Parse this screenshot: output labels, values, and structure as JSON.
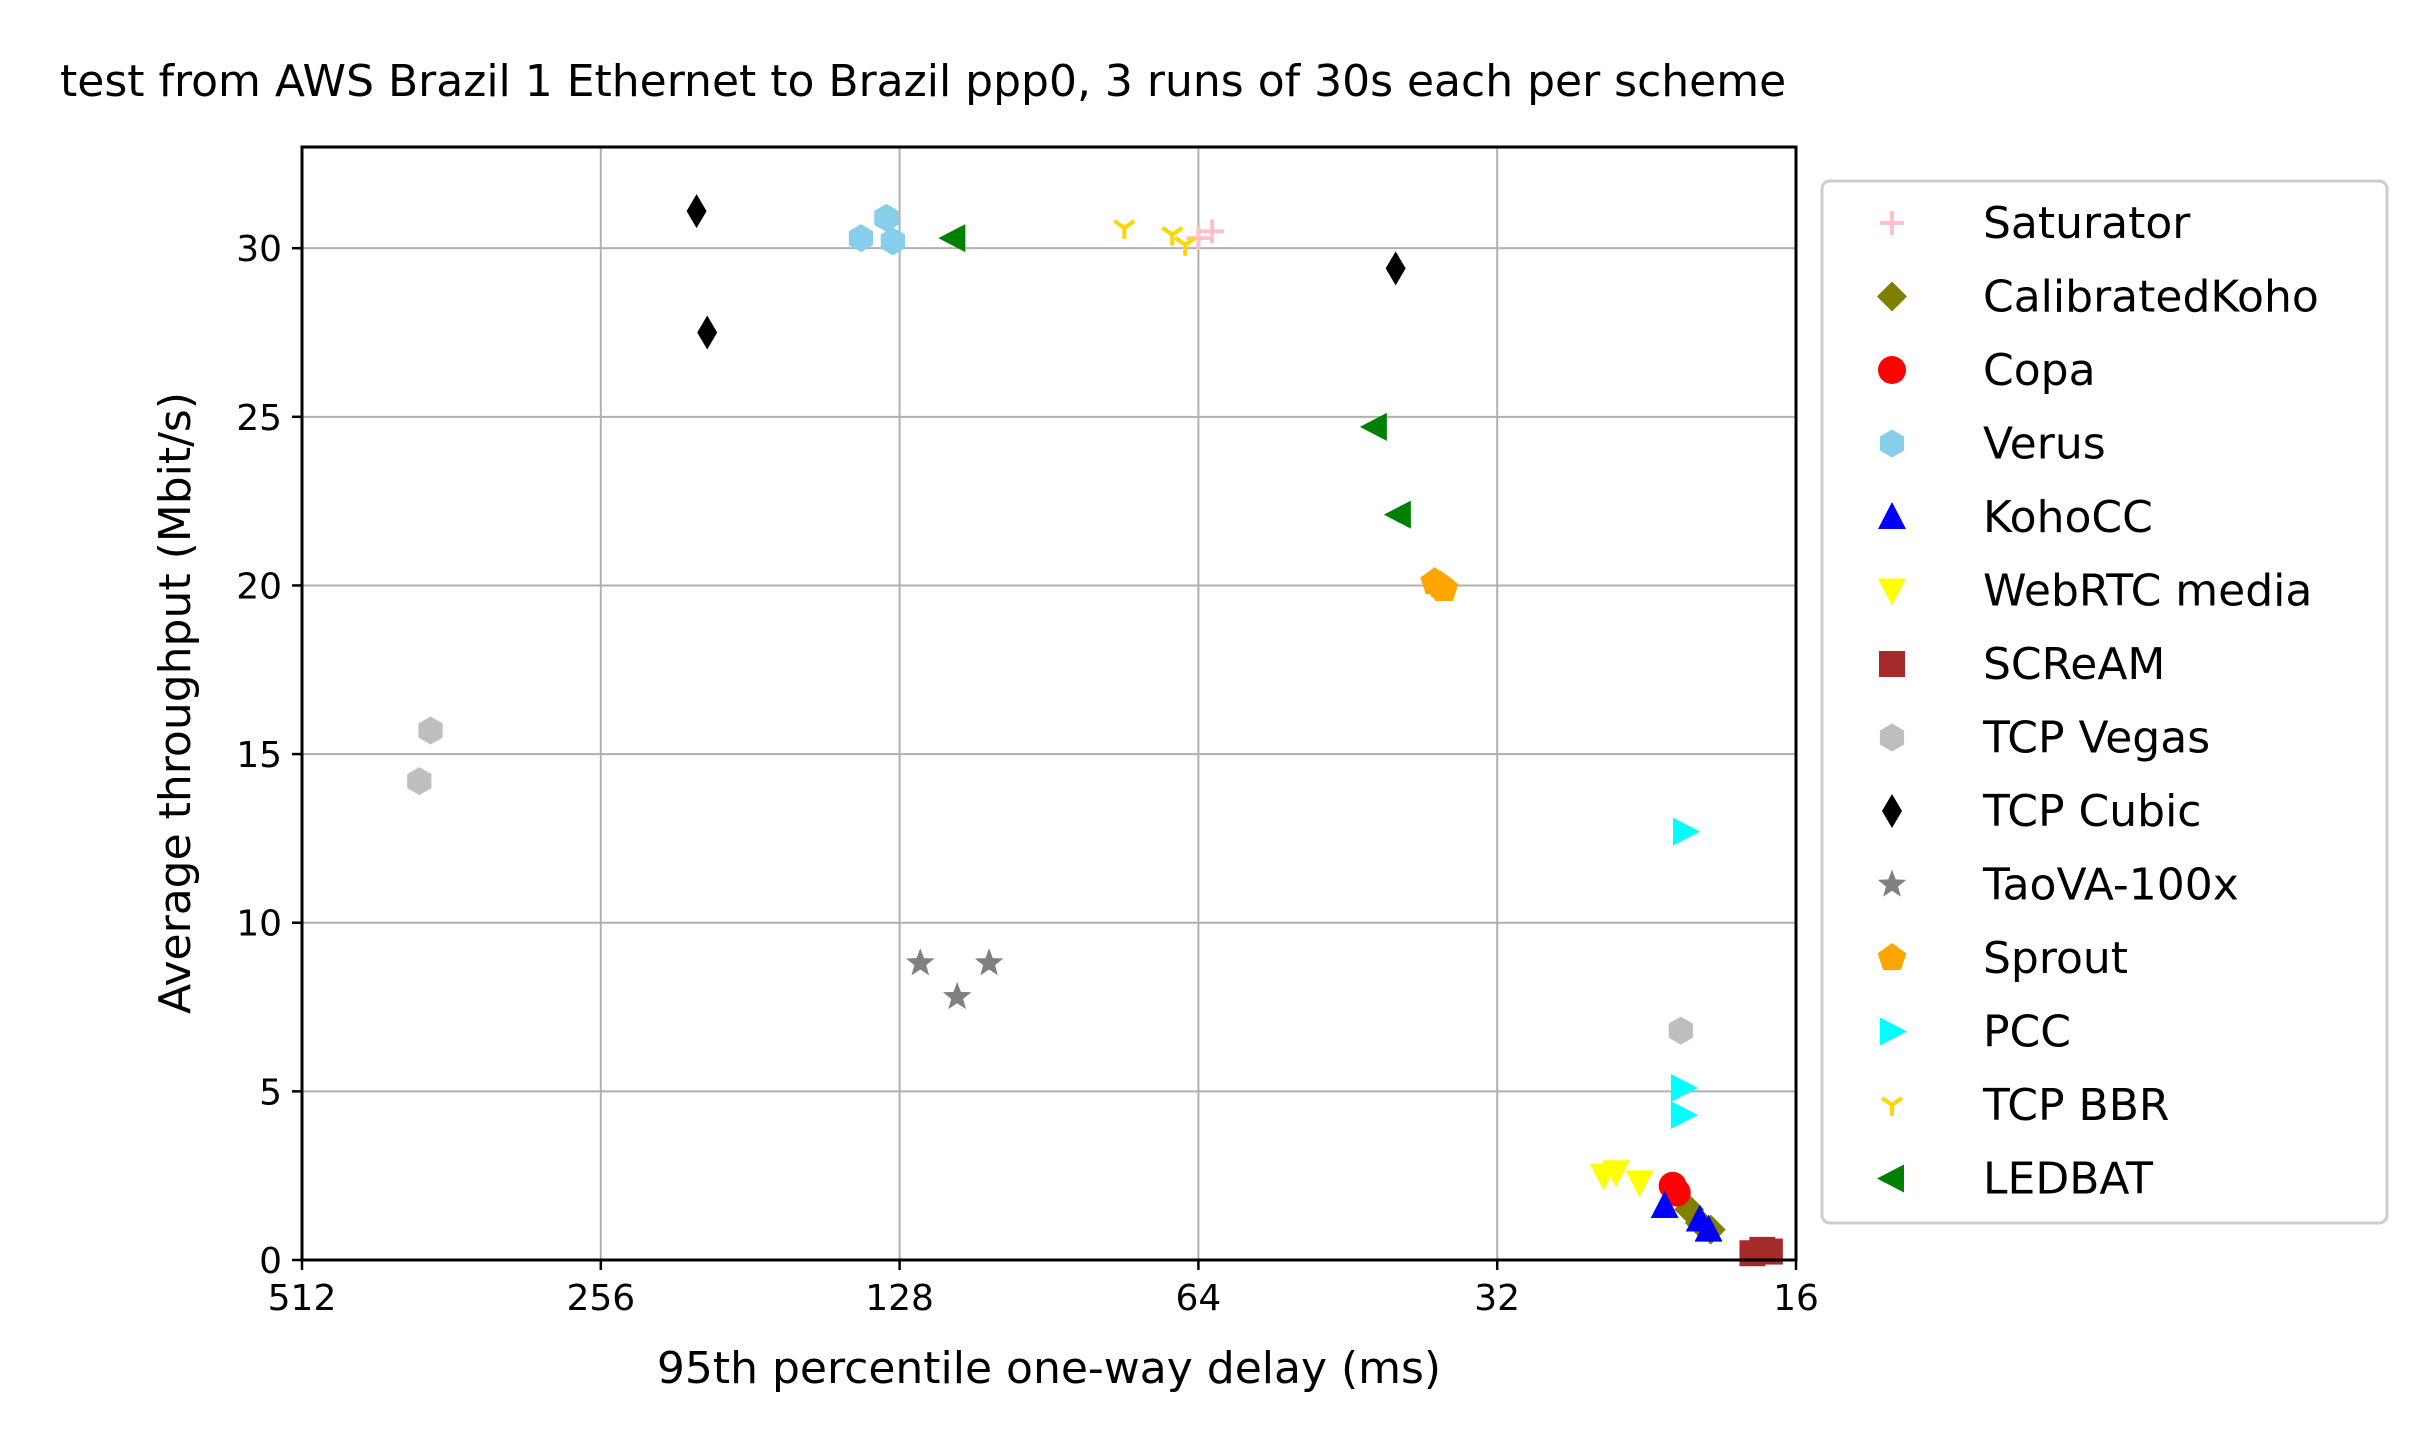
{
  "chart_data": {
    "type": "scatter",
    "title": "test from AWS Brazil 1 Ethernet to Brazil ppp0, 3 runs of 30s each per scheme",
    "xlabel": "95th percentile one-way delay (ms)",
    "ylabel": "Average throughput (Mbit/s)",
    "x_scale": "log2",
    "x_inverted": true,
    "xlim": [
      512,
      16
    ],
    "ylim": [
      0,
      33
    ],
    "x_ticks": [
      512,
      256,
      128,
      64,
      32,
      16
    ],
    "x_tick_labels": [
      "512",
      "256",
      "128",
      "64",
      "32",
      "16"
    ],
    "y_ticks": [
      0,
      5,
      10,
      15,
      20,
      25,
      30
    ],
    "y_tick_labels": [
      "0",
      "5",
      "10",
      "15",
      "20",
      "25",
      "30"
    ],
    "grid": true,
    "legend_position": "right-outside",
    "series": [
      {
        "name": "Saturator",
        "marker": "plus",
        "color": "#ffc0cb",
        "points": [
          {
            "x": 62,
            "y": 30.5
          },
          {
            "x": 64,
            "y": 30.3
          }
        ]
      },
      {
        "name": "CalibratedKoho",
        "marker": "diamond",
        "color": "#808000",
        "points": [
          {
            "x": 20.5,
            "y": 1.5
          },
          {
            "x": 20.0,
            "y": 1.1
          },
          {
            "x": 19.5,
            "y": 0.9
          }
        ]
      },
      {
        "name": "Copa",
        "marker": "circle",
        "color": "#ff0000",
        "points": [
          {
            "x": 21.3,
            "y": 2.2
          },
          {
            "x": 21.1,
            "y": 2.0
          }
        ]
      },
      {
        "name": "Verus",
        "marker": "hexagon",
        "color": "#87ceeb",
        "points": [
          {
            "x": 132,
            "y": 30.9
          },
          {
            "x": 140,
            "y": 30.3
          },
          {
            "x": 130,
            "y": 30.2
          }
        ]
      },
      {
        "name": "KohoCC",
        "marker": "triangle-up",
        "color": "#0000ff",
        "points": [
          {
            "x": 21.7,
            "y": 1.6
          },
          {
            "x": 20.0,
            "y": 1.2
          },
          {
            "x": 19.6,
            "y": 0.9
          }
        ]
      },
      {
        "name": "WebRTC media",
        "marker": "triangle-down",
        "color": "#ffff00",
        "points": [
          {
            "x": 25.0,
            "y": 2.5
          },
          {
            "x": 24.3,
            "y": 2.6
          },
          {
            "x": 23.0,
            "y": 2.3
          }
        ]
      },
      {
        "name": "SCReAM",
        "marker": "square",
        "color": "#a52a2a",
        "points": [
          {
            "x": 17.3,
            "y": 0.3
          },
          {
            "x": 17.0,
            "y": 0.25
          },
          {
            "x": 17.7,
            "y": 0.2
          }
        ]
      },
      {
        "name": "TCP Vegas",
        "marker": "hexagon",
        "color": "#bebebe",
        "points": [
          {
            "x": 380,
            "y": 15.7
          },
          {
            "x": 390,
            "y": 14.2
          },
          {
            "x": 20.9,
            "y": 6.8
          }
        ]
      },
      {
        "name": "TCP Cubic",
        "marker": "thin-diamond",
        "color": "#000000",
        "points": [
          {
            "x": 205,
            "y": 31.1
          },
          {
            "x": 200,
            "y": 27.5
          },
          {
            "x": 40.5,
            "y": 29.4
          }
        ]
      },
      {
        "name": "TaoVA-100x",
        "marker": "star",
        "color": "#808080",
        "points": [
          {
            "x": 122,
            "y": 8.8
          },
          {
            "x": 112,
            "y": 7.8
          },
          {
            "x": 104,
            "y": 8.8
          }
        ]
      },
      {
        "name": "Sprout",
        "marker": "pentagon",
        "color": "#ffa500",
        "points": [
          {
            "x": 37.0,
            "y": 20.1
          },
          {
            "x": 36.5,
            "y": 20.0
          },
          {
            "x": 36.2,
            "y": 19.9
          }
        ]
      },
      {
        "name": "PCC",
        "marker": "triangle-right",
        "color": "#00ffff",
        "points": [
          {
            "x": 20.7,
            "y": 12.7
          },
          {
            "x": 20.8,
            "y": 5.1
          },
          {
            "x": 20.8,
            "y": 4.3
          }
        ]
      },
      {
        "name": "TCP BBR",
        "marker": "tri-down",
        "color": "#ffd700",
        "points": [
          {
            "x": 76,
            "y": 30.6
          },
          {
            "x": 68,
            "y": 30.4
          },
          {
            "x": 66,
            "y": 30.1
          }
        ]
      },
      {
        "name": "LEDBAT",
        "marker": "triangle-left",
        "color": "#008000",
        "points": [
          {
            "x": 113,
            "y": 30.3
          },
          {
            "x": 42.5,
            "y": 24.7
          },
          {
            "x": 40.2,
            "y": 22.1
          }
        ]
      }
    ]
  }
}
